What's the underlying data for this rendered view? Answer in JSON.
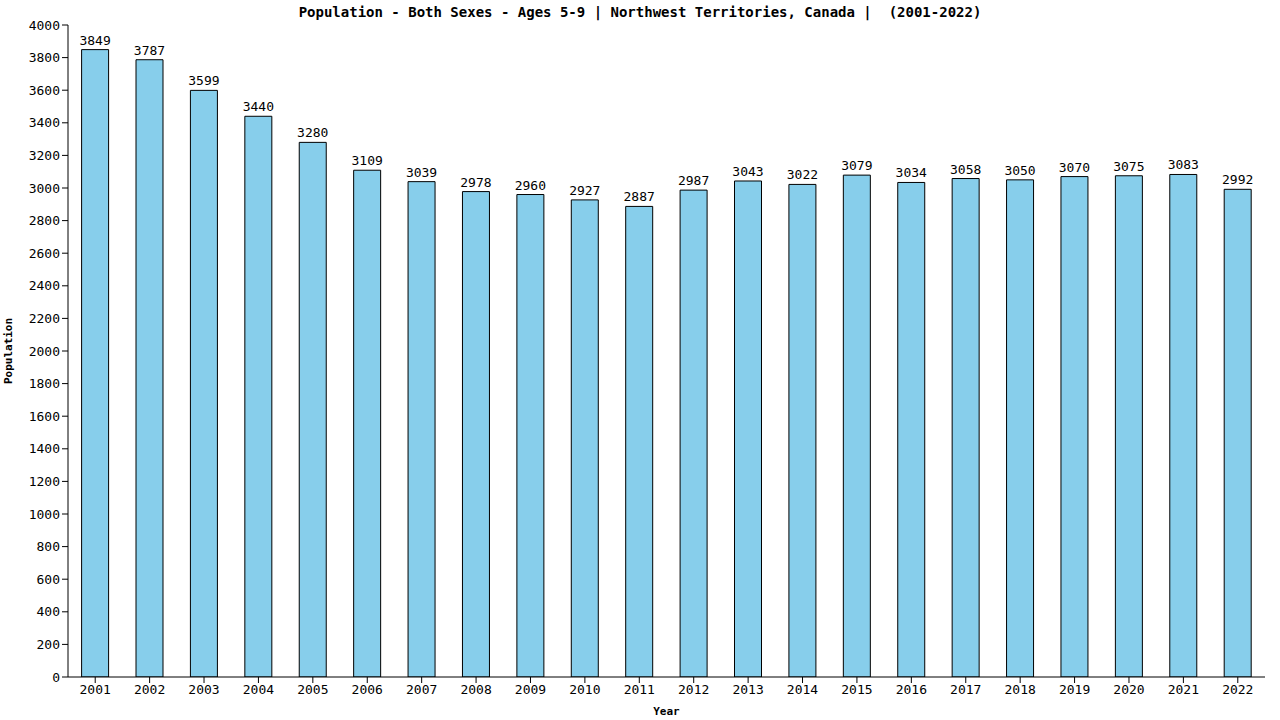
{
  "chart_data": {
    "type": "bar",
    "title": "Population - Both Sexes - Ages 5-9 | Northwest Territories, Canada |  (2001-2022)",
    "x_label": "Year",
    "y_label": "Population",
    "categories": [
      "2001",
      "2002",
      "2003",
      "2004",
      "2005",
      "2006",
      "2007",
      "2008",
      "2009",
      "2010",
      "2011",
      "2012",
      "2013",
      "2014",
      "2015",
      "2016",
      "2017",
      "2018",
      "2019",
      "2020",
      "2021",
      "2022"
    ],
    "values": [
      3849,
      3787,
      3599,
      3440,
      3280,
      3109,
      3039,
      2978,
      2960,
      2927,
      2887,
      2987,
      3043,
      3022,
      3079,
      3034,
      3058,
      3050,
      3070,
      3075,
      3083,
      2992
    ],
    "color": "#87ceeb",
    "ylim": [
      0,
      4000
    ],
    "yticks": [
      0,
      200,
      400,
      600,
      800,
      1000,
      1200,
      1400,
      1600,
      1800,
      2000,
      2200,
      2400,
      2600,
      2800,
      3000,
      3200,
      3400,
      3600,
      3800,
      4000
    ],
    "grid": false,
    "data_labels": true
  }
}
